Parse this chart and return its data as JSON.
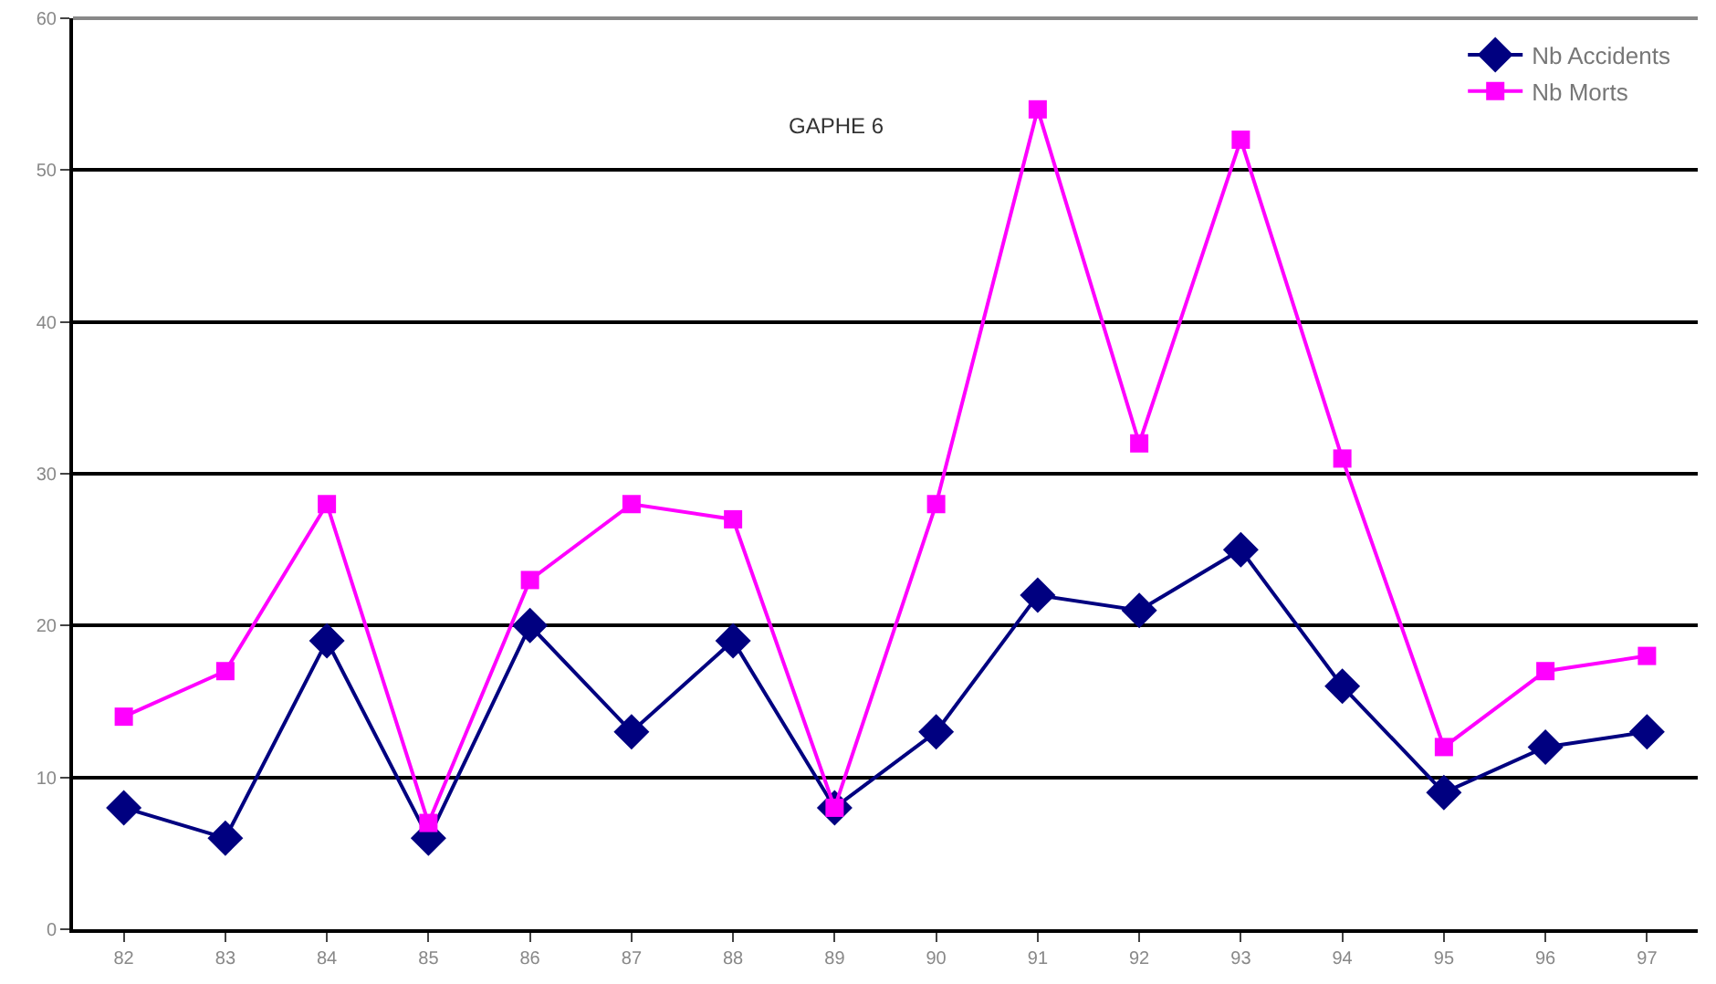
{
  "chart_data": {
    "type": "line",
    "title": "GAPHE 6",
    "categories": [
      "82",
      "83",
      "84",
      "85",
      "86",
      "87",
      "88",
      "89",
      "90",
      "91",
      "92",
      "93",
      "94",
      "95",
      "96",
      "97"
    ],
    "series": [
      {
        "name": "Nb Accidents",
        "color": "#000080",
        "marker": "diamond",
        "values": [
          8,
          6,
          19,
          6,
          20,
          13,
          19,
          8,
          13,
          22,
          21,
          25,
          16,
          9,
          12,
          13
        ]
      },
      {
        "name": "Nb Morts",
        "color": "#ff00ff",
        "marker": "square",
        "values": [
          14,
          17,
          28,
          7,
          23,
          28,
          27,
          8,
          28,
          54,
          32,
          52,
          31,
          12,
          17,
          18
        ]
      }
    ],
    "ylim": [
      0,
      60
    ],
    "yticks": [
      0,
      10,
      20,
      30,
      40,
      50,
      60
    ],
    "grid": "y",
    "legend": "top right",
    "line_style": "solid"
  }
}
